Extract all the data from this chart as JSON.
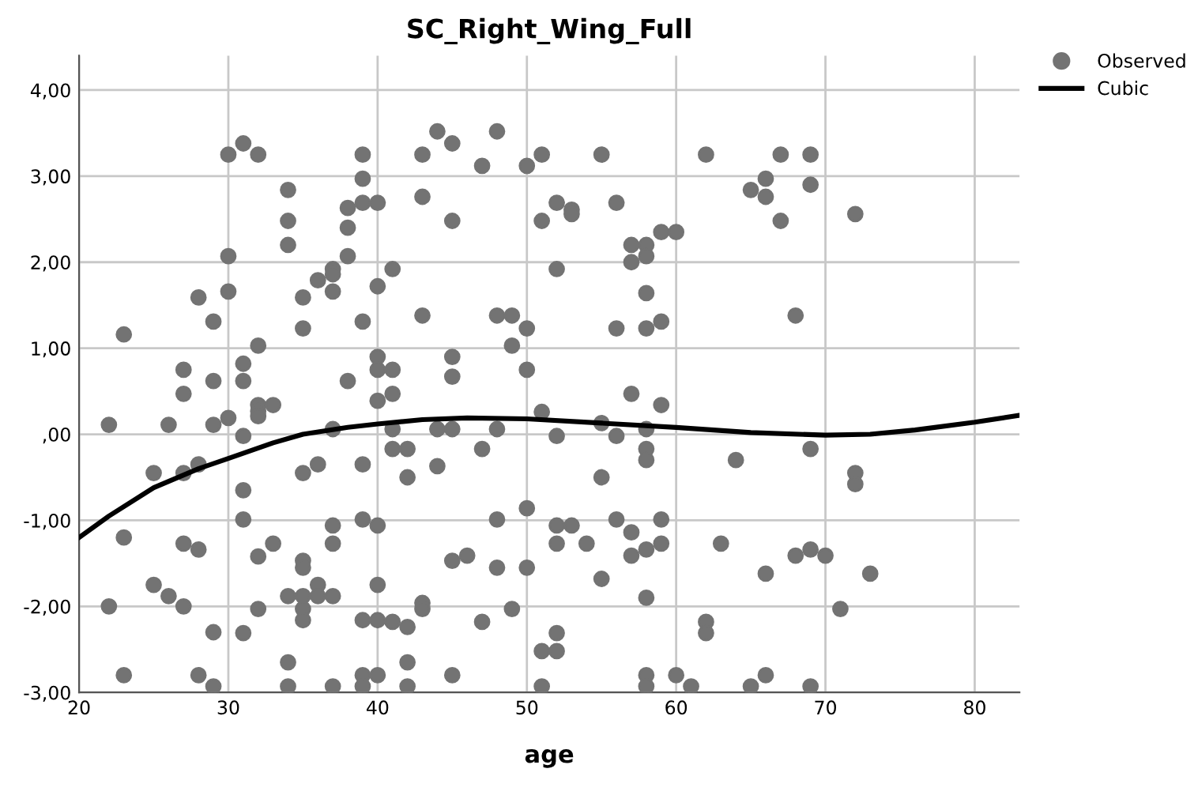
{
  "chart_data": {
    "type": "scatter",
    "title": "SC_Right_Wing_Full",
    "xlabel": "age",
    "xlim": [
      20,
      83
    ],
    "xticks": [
      20,
      30,
      40,
      50,
      60,
      70,
      80
    ],
    "ylim": [
      -3,
      4.4
    ],
    "yticks": [
      {
        "value": -3,
        "label": "-3,00"
      },
      {
        "value": -2,
        "label": "-2,00"
      },
      {
        "value": -1,
        "label": "-1,00"
      },
      {
        "value": 0,
        "label": ",00"
      },
      {
        "value": 1,
        "label": "1,00"
      },
      {
        "value": 2,
        "label": "2,00"
      },
      {
        "value": 3,
        "label": "3,00"
      },
      {
        "value": 4,
        "label": "4,00"
      }
    ],
    "grid": true,
    "legend": "top right",
    "series": [
      {
        "name": "Observed",
        "marker": "circle",
        "color": "#737373",
        "x": [
          22,
          22,
          23,
          23,
          23,
          25,
          25,
          26,
          26,
          27,
          27,
          27,
          27,
          27,
          28,
          28,
          28,
          28,
          29,
          29,
          29,
          29,
          29,
          30,
          30,
          30,
          30,
          31,
          31,
          31,
          31,
          31,
          31,
          31,
          32,
          32,
          32,
          32,
          32,
          32,
          32,
          33,
          33,
          34,
          34,
          34,
          34,
          34,
          34,
          35,
          35,
          35,
          35,
          35,
          35,
          35,
          35,
          36,
          36,
          36,
          36,
          37,
          37,
          37,
          37,
          37,
          37,
          37,
          37,
          38,
          38,
          38,
          38,
          39,
          39,
          39,
          39,
          39,
          39,
          39,
          39,
          39,
          40,
          40,
          40,
          40,
          40,
          40,
          40,
          40,
          40,
          41,
          41,
          41,
          41,
          41,
          41,
          42,
          42,
          42,
          42,
          42,
          43,
          43,
          43,
          43,
          43,
          44,
          44,
          44,
          45,
          45,
          45,
          45,
          45,
          45,
          45,
          46,
          47,
          47,
          47,
          48,
          48,
          48,
          48,
          48,
          49,
          49,
          49,
          50,
          50,
          50,
          50,
          50,
          51,
          51,
          51,
          51,
          51,
          52,
          52,
          52,
          52,
          52,
          52,
          52,
          53,
          53,
          53,
          54,
          55,
          55,
          55,
          55,
          56,
          56,
          56,
          56,
          57,
          57,
          57,
          57,
          57,
          58,
          58,
          58,
          58,
          58,
          58,
          58,
          58,
          58,
          58,
          58,
          59,
          59,
          59,
          59,
          59,
          60,
          60,
          61,
          62,
          62,
          62,
          63,
          64,
          65,
          65,
          66,
          66,
          66,
          66,
          67,
          67,
          68,
          68,
          69,
          69,
          69,
          69,
          69,
          70,
          71,
          72,
          72,
          72,
          73
        ],
        "values": [
          0.11,
          -2.0,
          1.16,
          -1.2,
          -2.8,
          -0.45,
          -1.75,
          0.11,
          -1.88,
          0.75,
          0.47,
          -0.45,
          -1.27,
          -2.0,
          1.59,
          -0.35,
          -1.34,
          -2.8,
          1.31,
          0.62,
          0.11,
          -2.3,
          -2.93,
          3.25,
          2.07,
          1.66,
          0.19,
          3.38,
          0.82,
          0.62,
          -0.02,
          -0.65,
          -0.99,
          -2.31,
          3.25,
          1.03,
          0.34,
          0.27,
          0.21,
          -1.42,
          -2.03,
          0.34,
          -1.27,
          2.84,
          2.48,
          2.2,
          -1.88,
          -2.65,
          -2.93,
          1.59,
          1.23,
          -0.45,
          -1.47,
          -1.55,
          -1.88,
          -2.03,
          -2.16,
          1.79,
          -0.35,
          -1.75,
          -1.88,
          1.92,
          1.86,
          1.66,
          0.06,
          -1.06,
          -1.27,
          -1.88,
          -2.93,
          2.63,
          2.4,
          2.07,
          0.62,
          3.25,
          2.97,
          2.69,
          1.31,
          -0.35,
          -0.99,
          -2.16,
          -2.8,
          -2.93,
          2.69,
          1.72,
          0.9,
          0.75,
          0.39,
          -1.06,
          -1.75,
          -2.16,
          -2.8,
          1.92,
          0.75,
          0.47,
          0.06,
          -0.17,
          -2.18,
          -0.17,
          -0.5,
          -2.24,
          -2.65,
          -2.93,
          3.25,
          2.76,
          1.38,
          -1.96,
          -2.03,
          3.52,
          0.06,
          -0.37,
          3.38,
          2.48,
          0.9,
          0.67,
          0.06,
          -1.47,
          -2.8,
          -1.41,
          3.12,
          -0.17,
          -2.18,
          3.52,
          1.38,
          0.06,
          -0.99,
          -1.55,
          1.38,
          1.03,
          -2.03,
          3.12,
          1.23,
          0.75,
          -0.86,
          -1.55,
          3.25,
          2.48,
          0.26,
          -2.52,
          -2.93,
          2.69,
          1.92,
          -0.02,
          -1.06,
          -1.27,
          -2.31,
          -2.52,
          2.61,
          2.56,
          -1.06,
          -1.27,
          3.25,
          0.13,
          -0.5,
          -1.68,
          2.69,
          1.23,
          -0.02,
          -0.99,
          2.2,
          2.0,
          0.47,
          -1.14,
          -1.41,
          2.2,
          2.07,
          1.64,
          1.23,
          0.06,
          -0.17,
          -0.3,
          -1.34,
          -1.9,
          -2.8,
          -2.93,
          2.35,
          1.31,
          0.34,
          -0.99,
          -1.27,
          2.35,
          -2.8,
          -2.93,
          3.25,
          -2.18,
          -2.31,
          -1.27,
          -0.3,
          2.84,
          -2.93,
          2.97,
          2.76,
          -1.62,
          -2.8,
          3.25,
          2.48,
          1.38,
          -1.41,
          3.25,
          2.9,
          -0.17,
          -1.34,
          -2.93,
          -1.41,
          -2.03,
          2.56,
          -0.45,
          -0.58,
          -1.62
        ]
      },
      {
        "name": "Cubic",
        "type": "line",
        "marker": "none",
        "color": "#000000",
        "x": [
          20,
          22,
          25,
          28,
          30,
          33,
          35,
          38,
          40,
          43,
          46,
          50,
          55,
          60,
          65,
          70,
          73,
          76,
          80,
          83
        ],
        "values": [
          -1.2,
          -0.95,
          -0.62,
          -0.4,
          -0.28,
          -0.1,
          0.0,
          0.08,
          0.12,
          0.17,
          0.19,
          0.18,
          0.13,
          0.08,
          0.02,
          -0.01,
          0.0,
          0.05,
          0.14,
          0.22
        ]
      }
    ]
  }
}
